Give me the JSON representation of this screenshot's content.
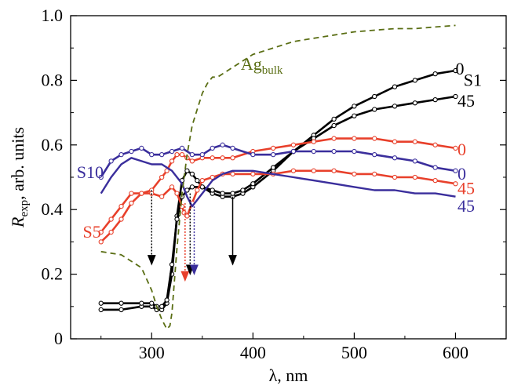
{
  "chart_data": {
    "type": "line",
    "xlabel": "λ, nm",
    "ylabel": {
      "main": "R",
      "sub": "exp",
      "rest": ", arb. units"
    },
    "xlim": [
      220,
      650
    ],
    "ylim": [
      0,
      1.0
    ],
    "xticks": [
      300,
      400,
      500,
      600
    ],
    "yticks": [
      0,
      0.2,
      0.4,
      0.6,
      0.8,
      1.0
    ],
    "ytick_labels": [
      "0",
      "0.2",
      "0.4",
      "0.6",
      "0.8",
      "1.0"
    ],
    "grid": false,
    "colors": {
      "black": "#000000",
      "red": "#e8402b",
      "blue": "#3a2e9c",
      "ag": "#5a6e14"
    },
    "series": [
      {
        "key": "s1_0",
        "color": "black",
        "dash": false,
        "marker": true,
        "x": [
          250,
          270,
          290,
          300,
          305,
          310,
          315,
          320,
          325,
          330,
          335,
          340,
          345,
          350,
          360,
          370,
          380,
          390,
          400,
          420,
          440,
          460,
          480,
          500,
          520,
          540,
          560,
          580,
          600
        ],
        "y": [
          0.09,
          0.09,
          0.1,
          0.1,
          0.09,
          0.09,
          0.11,
          0.2,
          0.38,
          0.49,
          0.52,
          0.51,
          0.49,
          0.47,
          0.45,
          0.44,
          0.44,
          0.45,
          0.47,
          0.52,
          0.58,
          0.63,
          0.68,
          0.72,
          0.75,
          0.78,
          0.8,
          0.82,
          0.83
        ]
      },
      {
        "key": "s1_45",
        "color": "black",
        "dash": false,
        "marker": true,
        "x": [
          250,
          270,
          290,
          300,
          305,
          310,
          315,
          320,
          325,
          330,
          335,
          340,
          350,
          360,
          370,
          380,
          390,
          400,
          420,
          440,
          460,
          480,
          500,
          520,
          540,
          560,
          580,
          600
        ],
        "y": [
          0.11,
          0.11,
          0.11,
          0.11,
          0.1,
          0.1,
          0.12,
          0.23,
          0.37,
          0.44,
          0.46,
          0.47,
          0.47,
          0.46,
          0.45,
          0.45,
          0.46,
          0.48,
          0.53,
          0.58,
          0.62,
          0.66,
          0.69,
          0.71,
          0.72,
          0.73,
          0.74,
          0.75
        ]
      },
      {
        "key": "s5_0",
        "color": "red",
        "dash": false,
        "marker": true,
        "x": [
          250,
          260,
          270,
          280,
          290,
          300,
          310,
          315,
          320,
          325,
          330,
          335,
          340,
          350,
          360,
          370,
          380,
          400,
          420,
          440,
          460,
          480,
          500,
          520,
          540,
          560,
          580,
          600
        ],
        "y": [
          0.33,
          0.37,
          0.41,
          0.45,
          0.45,
          0.46,
          0.5,
          0.52,
          0.55,
          0.57,
          0.57,
          0.56,
          0.55,
          0.56,
          0.56,
          0.56,
          0.56,
          0.58,
          0.59,
          0.6,
          0.61,
          0.62,
          0.62,
          0.62,
          0.61,
          0.61,
          0.6,
          0.59
        ]
      },
      {
        "key": "s5_45",
        "color": "red",
        "dash": false,
        "marker": true,
        "x": [
          250,
          260,
          270,
          280,
          290,
          300,
          310,
          320,
          325,
          330,
          332,
          335,
          340,
          345,
          350,
          360,
          370,
          380,
          400,
          420,
          440,
          460,
          480,
          500,
          520,
          540,
          560,
          580,
          600
        ],
        "y": [
          0.3,
          0.33,
          0.37,
          0.42,
          0.45,
          0.45,
          0.44,
          0.47,
          0.45,
          0.41,
          0.39,
          0.38,
          0.42,
          0.46,
          0.49,
          0.5,
          0.51,
          0.51,
          0.51,
          0.51,
          0.52,
          0.52,
          0.52,
          0.51,
          0.51,
          0.5,
          0.5,
          0.49,
          0.48
        ]
      },
      {
        "key": "s10_0",
        "color": "blue",
        "dash": false,
        "marker": true,
        "x": [
          250,
          260,
          270,
          280,
          290,
          300,
          310,
          320,
          330,
          340,
          350,
          360,
          370,
          380,
          400,
          420,
          440,
          460,
          480,
          500,
          520,
          540,
          560,
          580,
          600
        ],
        "y": [
          0.5,
          0.55,
          0.57,
          0.58,
          0.59,
          0.57,
          0.57,
          0.58,
          0.59,
          0.57,
          0.57,
          0.59,
          0.6,
          0.59,
          0.57,
          0.57,
          0.58,
          0.58,
          0.58,
          0.58,
          0.57,
          0.56,
          0.55,
          0.53,
          0.52
        ]
      },
      {
        "key": "s10_45",
        "color": "blue",
        "dash": false,
        "marker": false,
        "x": [
          250,
          260,
          270,
          280,
          290,
          300,
          310,
          320,
          330,
          335,
          340,
          350,
          360,
          370,
          380,
          400,
          420,
          440,
          460,
          480,
          500,
          520,
          540,
          560,
          580,
          600
        ],
        "y": [
          0.45,
          0.5,
          0.54,
          0.56,
          0.55,
          0.54,
          0.54,
          0.52,
          0.48,
          0.44,
          0.41,
          0.45,
          0.49,
          0.51,
          0.52,
          0.52,
          0.51,
          0.5,
          0.49,
          0.48,
          0.47,
          0.46,
          0.46,
          0.45,
          0.45,
          0.44
        ]
      },
      {
        "key": "ag_bulk",
        "color": "ag",
        "dash": true,
        "marker": false,
        "x": [
          250,
          270,
          290,
          300,
          305,
          310,
          315,
          318,
          320,
          325,
          330,
          335,
          340,
          345,
          350,
          355,
          360,
          365,
          370,
          380,
          400,
          420,
          440,
          460,
          480,
          500,
          520,
          540,
          560,
          580,
          600
        ],
        "y": [
          0.27,
          0.26,
          0.22,
          0.15,
          0.1,
          0.06,
          0.03,
          0.04,
          0.08,
          0.28,
          0.45,
          0.57,
          0.66,
          0.71,
          0.76,
          0.79,
          0.81,
          0.81,
          0.82,
          0.84,
          0.88,
          0.9,
          0.92,
          0.93,
          0.94,
          0.95,
          0.955,
          0.96,
          0.96,
          0.965,
          0.97
        ]
      }
    ],
    "arrows": [
      {
        "x": 300,
        "y_from": 0.46,
        "y_to": 0.23,
        "color": "black",
        "dotted": true
      },
      {
        "x": 333,
        "y_from": 0.42,
        "y_to": 0.18,
        "color": "red",
        "dotted": true
      },
      {
        "x": 338,
        "y_from": 0.45,
        "y_to": 0.2,
        "color": "black",
        "dotted": true
      },
      {
        "x": 342,
        "y_from": 0.41,
        "y_to": 0.2,
        "color": "blue",
        "dotted": true
      },
      {
        "x": 380,
        "y_from": 0.44,
        "y_to": 0.23,
        "color": "black",
        "dotted": false
      }
    ],
    "annotations": [
      {
        "text": "0",
        "x": 600,
        "y": 0.835,
        "color": "black"
      },
      {
        "text": "S1",
        "x": 608,
        "y": 0.8,
        "color": "black"
      },
      {
        "text": "45",
        "x": 602,
        "y": 0.735,
        "color": "black"
      },
      {
        "text": "0",
        "x": 602,
        "y": 0.585,
        "color": "red"
      },
      {
        "text": "S10",
        "x": 226,
        "y": 0.515,
        "color": "blue"
      },
      {
        "text": "0",
        "x": 602,
        "y": 0.51,
        "color": "blue"
      },
      {
        "text": "45",
        "x": 602,
        "y": 0.465,
        "color": "red"
      },
      {
        "text": "45",
        "x": 602,
        "y": 0.41,
        "color": "blue"
      },
      {
        "text": "S5",
        "x": 232,
        "y": 0.33,
        "color": "red"
      }
    ],
    "ag_label": {
      "main": "Ag",
      "sub": "bulk",
      "x": 388,
      "y": 0.85,
      "color": "ag"
    }
  }
}
